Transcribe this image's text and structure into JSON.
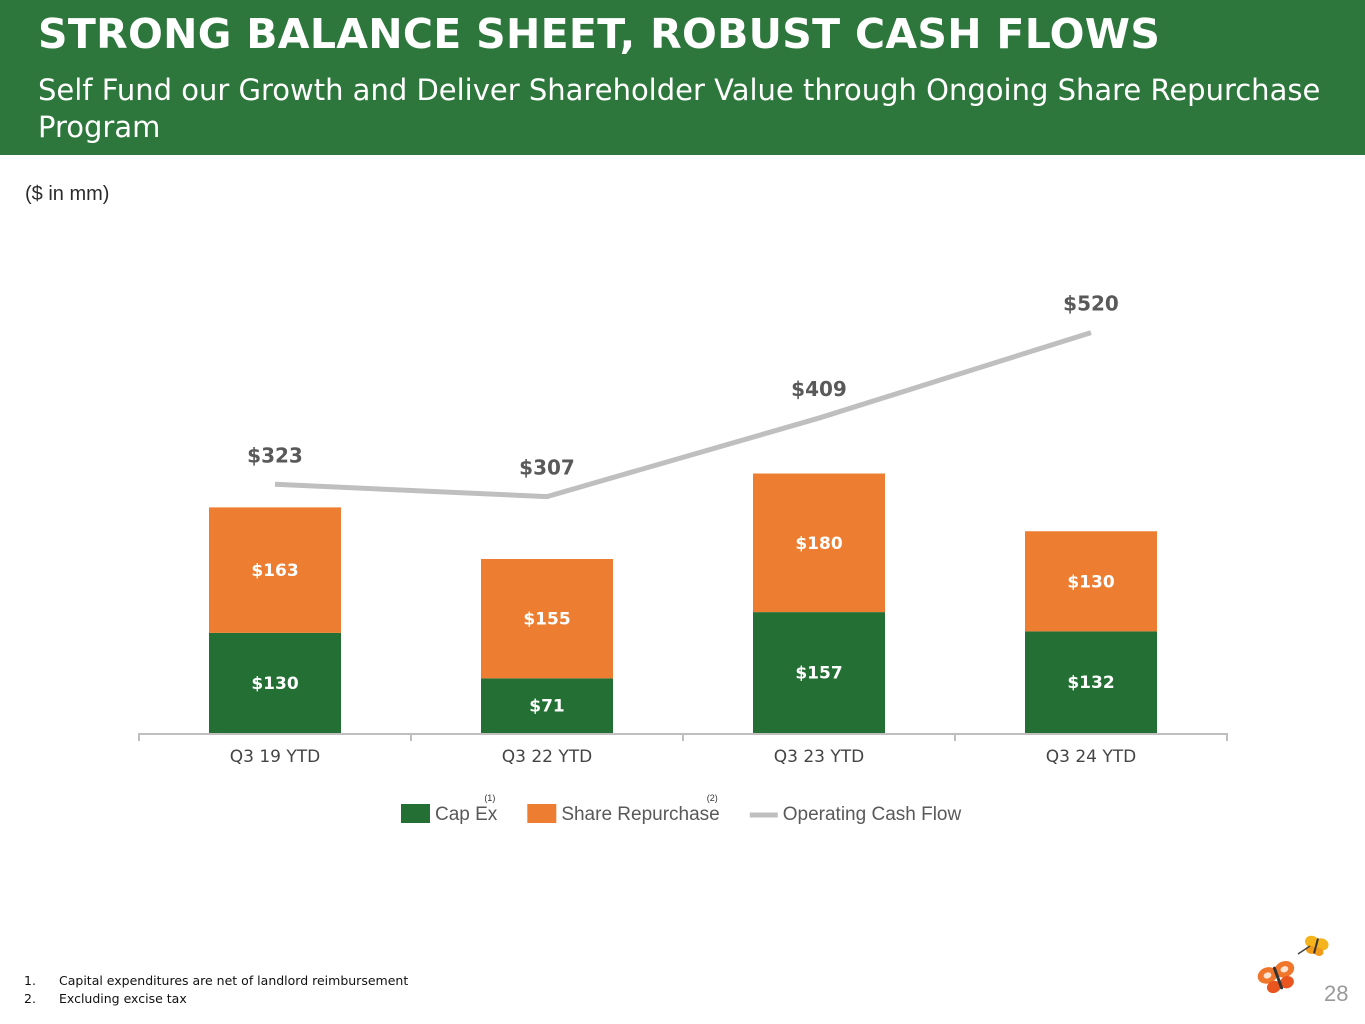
{
  "header": {
    "title": "STRONG BALANCE SHEET, ROBUST CASH FLOWS",
    "subtitle": "Self Fund our Growth and Deliver Shareholder Value through Ongoing Share Repurchase Program"
  },
  "units_note": "($ in mm)",
  "chart_data": {
    "type": "bar",
    "stacked": true,
    "title": "",
    "xlabel": "",
    "ylabel": "",
    "categories": [
      "Q3 19 YTD",
      "Q3 22 YTD",
      "Q3 23 YTD",
      "Q3 24 YTD"
    ],
    "series": [
      {
        "name": "Cap Ex",
        "superscript": "(1)",
        "type": "bar",
        "color": "#236f34",
        "values": [
          130,
          71,
          157,
          132
        ],
        "labels": [
          "$130",
          "$71",
          "$157",
          "$132"
        ]
      },
      {
        "name": "Share Repurchase",
        "superscript": "(2)",
        "type": "bar",
        "color": "#ec7d31",
        "values": [
          163,
          155,
          180,
          130
        ],
        "labels": [
          "$163",
          "$155",
          "$180",
          "$130"
        ]
      },
      {
        "name": "Operating Cash Flow",
        "type": "line",
        "color": "#bfbfbf",
        "values": [
          323,
          307,
          409,
          520
        ],
        "labels": [
          "$323",
          "$307",
          "$409",
          "$520"
        ]
      }
    ],
    "ylim": [
      0,
      560
    ],
    "grid": false,
    "legend": "bottom"
  },
  "footnotes": [
    {
      "num": "1.",
      "text": "Capital expenditures are net of landlord reimbursement"
    },
    {
      "num": "2.",
      "text": "Excluding excise tax"
    }
  ],
  "page_number": "28",
  "colors": {
    "header_bg": "#2e773c",
    "accent_orange": "#ec7d31",
    "line_gray": "#bfbfbf"
  }
}
